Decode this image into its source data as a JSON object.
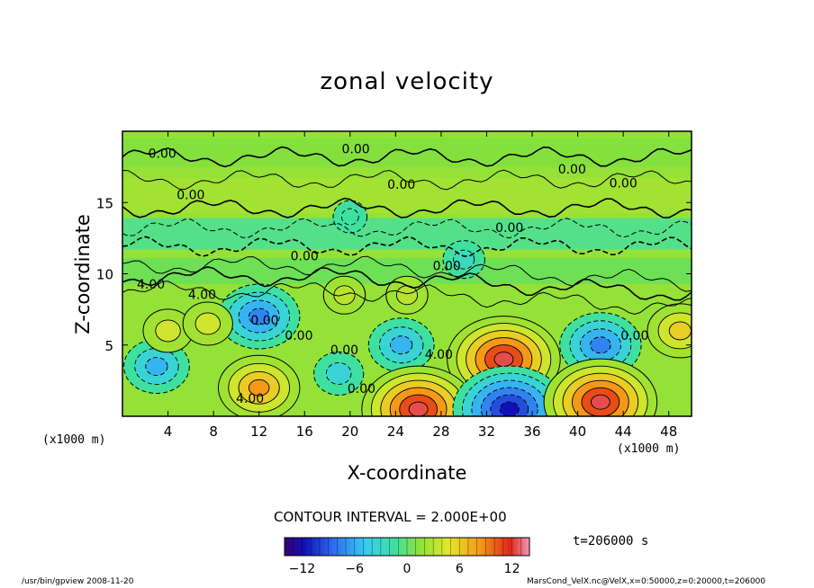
{
  "chart_data": {
    "type": "heatmap",
    "title": "zonal velocity",
    "xlabel": "X-coordinate",
    "ylabel": "Z-coordinate",
    "x_unit": "(x1000 m)",
    "z_unit": "(x1000 m)",
    "xlim": [
      0,
      50
    ],
    "ylim": [
      0,
      20
    ],
    "x_ticks": [
      "4",
      "8",
      "12",
      "16",
      "20",
      "24",
      "28",
      "32",
      "36",
      "40",
      "44",
      "48"
    ],
    "y_ticks": [
      "5",
      "10",
      "15"
    ],
    "contour_interval_text": "CONTOUR INTERVAL = 2.000E+00",
    "colorbar": {
      "range": [
        -14,
        14
      ],
      "ticks": [
        "−12",
        "−6",
        "0",
        "6",
        "12"
      ],
      "tick_values": [
        -12,
        -6,
        0,
        6,
        12
      ]
    },
    "contour_labels": [
      "0.00",
      "0.00",
      "0.00",
      "0.00",
      "0.00",
      "0.00",
      "0.00",
      "0.00",
      "0.00",
      "0.00",
      "0.00",
      "0.00",
      "0.00",
      "0.00",
      "4.00",
      "4.00",
      "4.00",
      "4.00"
    ],
    "features": [
      {
        "kind": "max",
        "x": 12,
        "z": 2,
        "value": 8
      },
      {
        "kind": "min",
        "x": 12,
        "z": 7,
        "value": -8
      },
      {
        "kind": "min",
        "x": 3,
        "z": 3.5,
        "value": -6
      },
      {
        "kind": "max",
        "x": 4,
        "z": 6,
        "value": 4
      },
      {
        "kind": "max",
        "x": 7.5,
        "z": 6.5,
        "value": 4
      },
      {
        "kind": "min",
        "x": 24.5,
        "z": 5,
        "value": -6
      },
      {
        "kind": "min",
        "x": 19,
        "z": 3,
        "value": -4
      },
      {
        "kind": "max",
        "x": 33.5,
        "z": 4,
        "value": 12
      },
      {
        "kind": "max",
        "x": 26,
        "z": 0.5,
        "value": 12
      },
      {
        "kind": "min",
        "x": 34,
        "z": 0.5,
        "value": -12
      },
      {
        "kind": "min",
        "x": 42,
        "z": 5,
        "value": -8
      },
      {
        "kind": "max",
        "x": 42,
        "z": 1,
        "value": 12
      },
      {
        "kind": "max",
        "x": 49,
        "z": 6,
        "value": 6
      },
      {
        "kind": "max",
        "x": 19.5,
        "z": 8.5,
        "value": 3
      },
      {
        "kind": "max",
        "x": 25,
        "z": 8.5,
        "value": 3
      },
      {
        "kind": "min",
        "x": 30,
        "z": 11,
        "value": -3
      },
      {
        "kind": "min",
        "x": 20,
        "z": 14,
        "value": -2
      }
    ]
  },
  "time_text": "t=206000  s",
  "footer": {
    "left": "/usr/bin/gpview   2008-11-20",
    "right": "MarsCond_VelX.nc@VelX,x=0:50000,z=0:20000,t=206000"
  }
}
